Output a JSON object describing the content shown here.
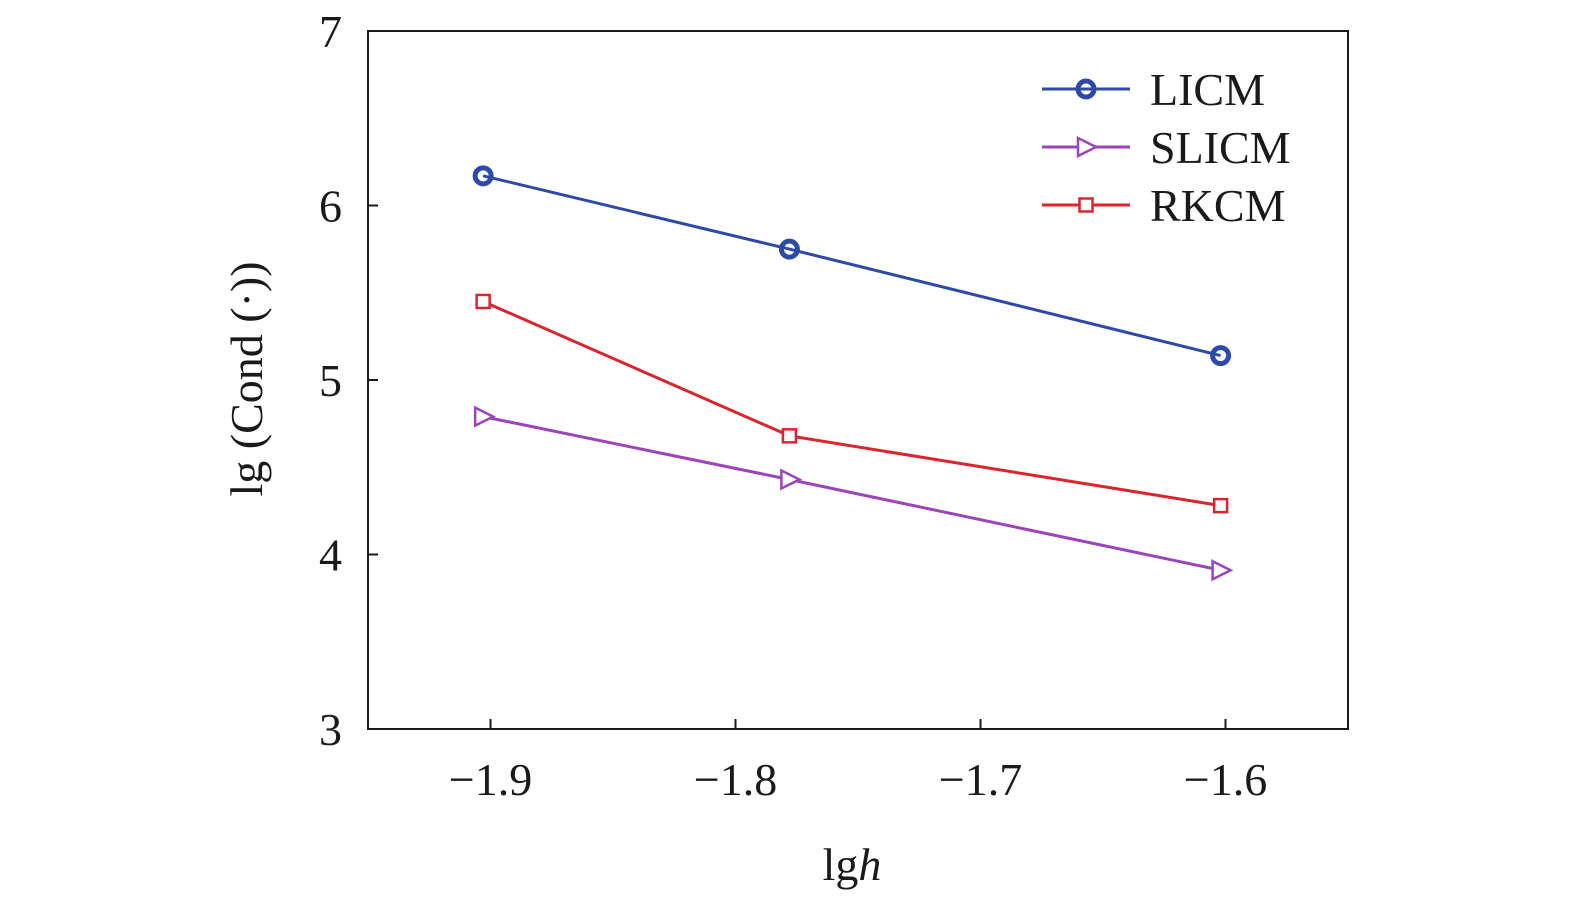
{
  "chart_data": {
    "type": "line",
    "xlabel_main": "lg",
    "xlabel_italic": "h",
    "ylabel": "lg (Cond (·))",
    "xlim": [
      -1.95,
      -1.55
    ],
    "ylim": [
      3,
      7
    ],
    "x_ticks": [
      -1.9,
      -1.8,
      -1.7,
      -1.6
    ],
    "x_tick_labels": [
      "−1.9",
      "−1.8",
      "−1.7",
      "−1.6"
    ],
    "y_ticks": [
      3,
      4,
      5,
      6,
      7
    ],
    "y_tick_labels": [
      "3",
      "4",
      "5",
      "6",
      "7"
    ],
    "x": [
      -1.903,
      -1.778,
      -1.602
    ],
    "legend_position": "top-right",
    "grid": false,
    "series": [
      {
        "name": "LICM",
        "values": [
          6.17,
          5.75,
          5.14
        ],
        "color": "#2e4aa8",
        "marker": "circle"
      },
      {
        "name": "SLICM",
        "values": [
          4.79,
          4.43,
          3.91
        ],
        "color": "#9b45b8",
        "marker": "triangle-right"
      },
      {
        "name": "RKCM",
        "values": [
          5.45,
          4.68,
          4.28
        ],
        "color": "#d9262e",
        "marker": "square"
      }
    ]
  }
}
